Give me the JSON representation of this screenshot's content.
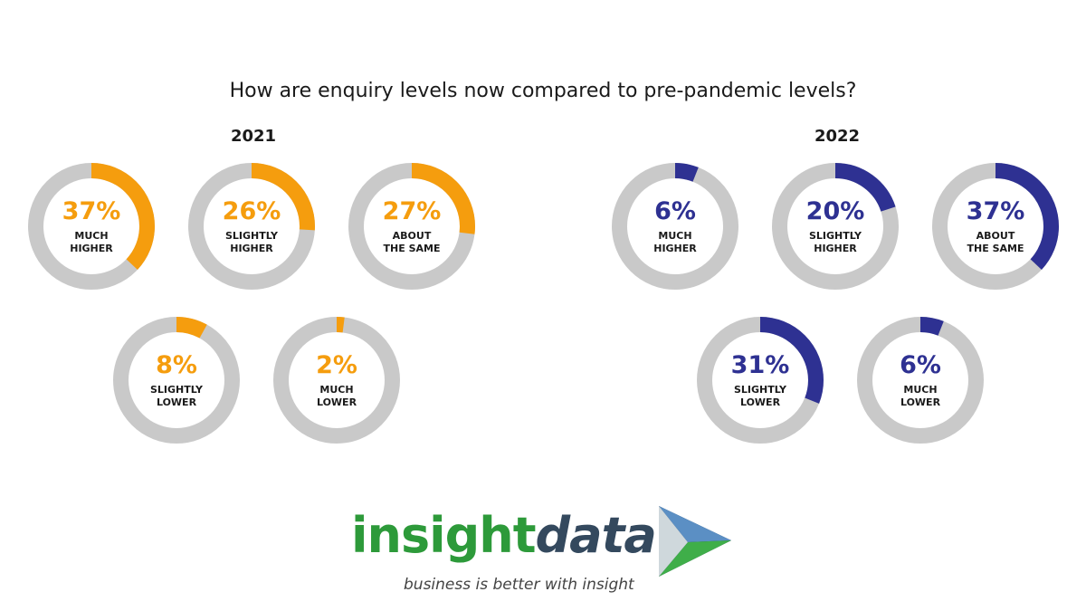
{
  "title": "How are enquiry levels now compared to pre-pandemic levels?",
  "chart_data": [
    {
      "type": "donut",
      "title": "2021",
      "color": "#f59d0e",
      "categories": [
        "MUCH HIGHER",
        "SLIGHTLY HIGHER",
        "ABOUT THE SAME",
        "SLIGHTLY LOWER",
        "MUCH LOWER"
      ],
      "values": [
        37,
        26,
        27,
        8,
        2
      ],
      "value_labels": [
        "37%",
        "26%",
        "27%",
        "8%",
        "2%"
      ]
    },
    {
      "type": "donut",
      "title": "2022",
      "color": "#2e3192",
      "categories": [
        "MUCH HIGHER",
        "SLIGHTLY HIGHER",
        "ABOUT THE SAME",
        "SLIGHTLY LOWER",
        "MUCH LOWER"
      ],
      "values": [
        6,
        20,
        37,
        31,
        6
      ],
      "value_labels": [
        "6%",
        "20%",
        "37%",
        "31%",
        "6%"
      ]
    }
  ],
  "logo": {
    "brand": [
      "insight",
      "data"
    ],
    "tagline": "business is better with insight"
  }
}
